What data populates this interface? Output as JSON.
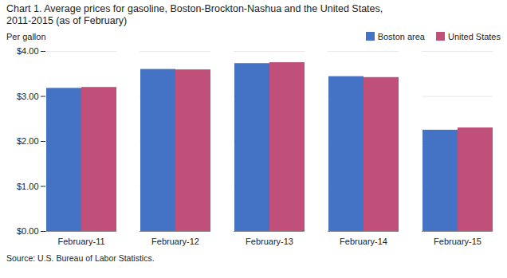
{
  "chart_data": {
    "type": "bar",
    "title": "Chart 1. Average prices for gasoline, Boston-Brockton-Nashua  and the United States,",
    "subtitle": "2011-2015 (as of February)",
    "ylabel": "Per gallon",
    "caption": "Source: U.S. Bureau of Labor Statistics.",
    "categories": [
      "February-11",
      "February-12",
      "February-13",
      "February-14",
      "February-15"
    ],
    "series": [
      {
        "name": "Boston area",
        "color": "#4472C4",
        "values": [
          3.18,
          3.6,
          3.73,
          3.44,
          2.25
        ]
      },
      {
        "name": "United States",
        "color": "#C0507A",
        "values": [
          3.2,
          3.59,
          3.75,
          3.42,
          2.3
        ]
      }
    ],
    "ylim": [
      0,
      4.0
    ],
    "yticks": [
      {
        "value": 0,
        "label": "$0.00"
      },
      {
        "value": 1,
        "label": "$1.00"
      },
      {
        "value": 2,
        "label": "$2.00"
      },
      {
        "value": 3,
        "label": "$3.00"
      },
      {
        "value": 4,
        "label": "$4.00"
      }
    ],
    "grid": true,
    "legend": "upper right"
  }
}
